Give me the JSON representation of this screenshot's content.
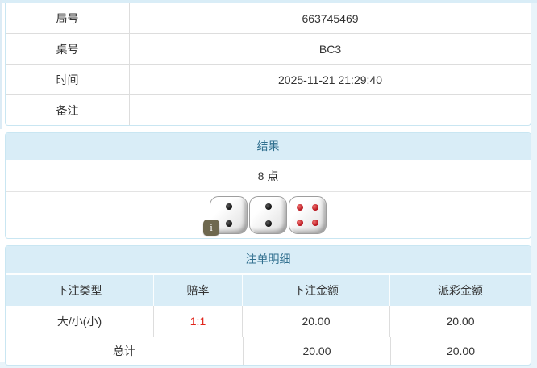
{
  "info_table": {
    "rows": [
      {
        "label": "局号",
        "value": "663745469"
      },
      {
        "label": "桌号",
        "value": "BC3"
      },
      {
        "label": "时间",
        "value": "2025-11-21 21:29:40"
      },
      {
        "label": "备注",
        "value": ""
      }
    ]
  },
  "result_panel": {
    "title": "结果",
    "points": "8 点",
    "dice": [
      {
        "value": 2,
        "color": "black"
      },
      {
        "value": 2,
        "color": "black"
      },
      {
        "value": 4,
        "color": "red"
      }
    ],
    "info_badge": "i"
  },
  "bets_panel": {
    "title": "注单明细",
    "columns": [
      "下注类型",
      "赔率",
      "下注金额",
      "派彩金额"
    ],
    "rows": [
      {
        "bet_type": "大/小(小)",
        "odds": "1:1",
        "bet_amount": "20.00",
        "payout": "20.00"
      }
    ],
    "total": {
      "label": "总计",
      "bet_amount": "20.00",
      "payout": "20.00"
    }
  },
  "colors": {
    "page_edge": "#e9f4fa",
    "header_bg": "#d9edf7",
    "header_text": "#31708f",
    "panel_border": "#c9e6f2",
    "grid_line": "#dddddd",
    "odds_red": "#e1251b",
    "dice_pip_black": "#111111",
    "dice_pip_red": "#b40f18",
    "badge_bg": "#6e684f"
  }
}
